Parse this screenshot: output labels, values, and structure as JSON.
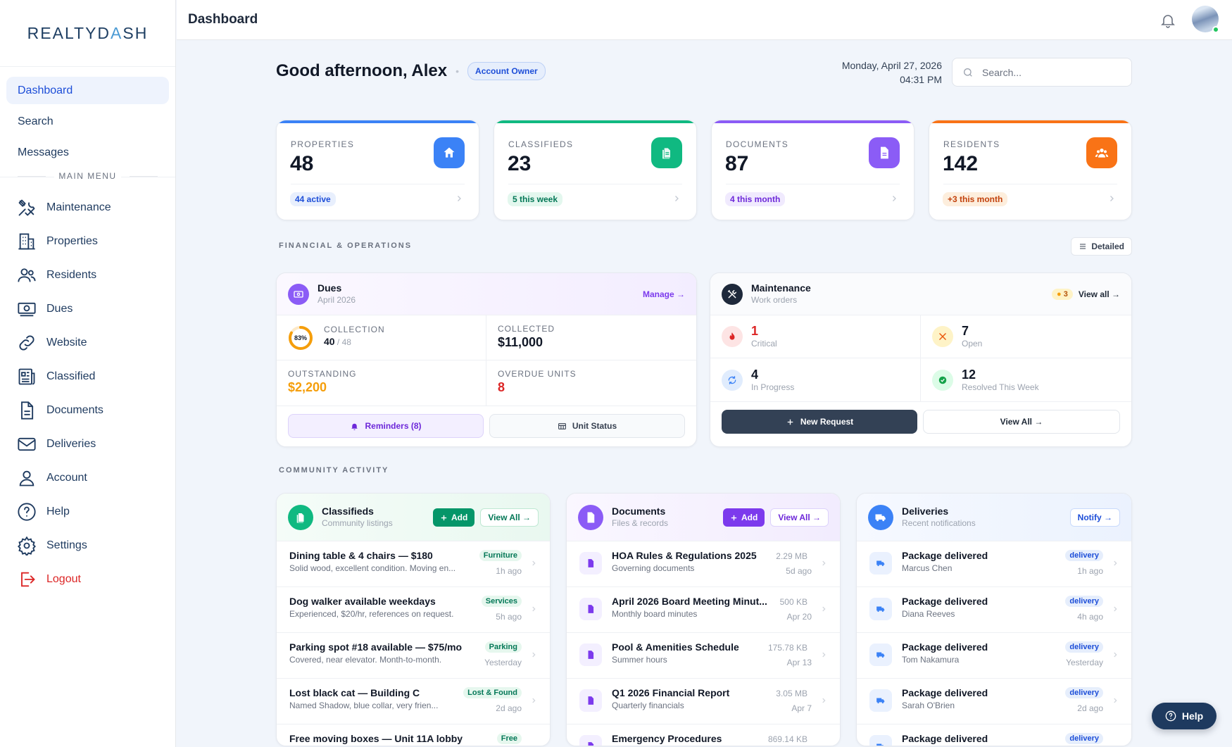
{
  "brand": {
    "logo_main": "REALTYD",
    "logo_accent": "A",
    "logo_tail": "SH"
  },
  "sidebar": {
    "top_items": [
      {
        "label": "Dashboard",
        "active": true
      },
      {
        "label": "Search"
      },
      {
        "label": "Messages"
      }
    ],
    "menu_title": "MAIN MENU",
    "items": [
      {
        "label": "Maintenance",
        "icon": "tools-icon"
      },
      {
        "label": "Properties",
        "icon": "building-icon"
      },
      {
        "label": "Residents",
        "icon": "users-icon"
      },
      {
        "label": "Dues",
        "icon": "money-icon"
      },
      {
        "label": "Website",
        "icon": "link-icon"
      },
      {
        "label": "Classified",
        "icon": "newspaper-icon"
      },
      {
        "label": "Documents",
        "icon": "document-icon"
      },
      {
        "label": "Deliveries",
        "icon": "mail-icon"
      },
      {
        "label": "Account",
        "icon": "person-icon"
      },
      {
        "label": "Help",
        "icon": "question-icon"
      },
      {
        "label": "Settings",
        "icon": "gear-icon"
      },
      {
        "label": "Logout",
        "icon": "logout-icon"
      }
    ]
  },
  "topbar": {
    "title": "Dashboard"
  },
  "header": {
    "greeting": "Good afternoon, Alex",
    "role_badge": "Account Owner",
    "date": "Monday, April 27, 2026",
    "time": "04:31 PM",
    "search_placeholder": "Search..."
  },
  "stats": [
    {
      "label": "PROPERTIES",
      "value": "48",
      "pill": "44 active",
      "color": "#3b82f6",
      "pill_bg": "#e8effd",
      "pill_fg": "#1d4ed8",
      "icon": "home-icon"
    },
    {
      "label": "CLASSIFIEDS",
      "value": "23",
      "pill": "5 this week",
      "color": "#10b981",
      "pill_bg": "#e3f7ee",
      "pill_fg": "#047857",
      "icon": "clipboard-icon"
    },
    {
      "label": "DOCUMENTS",
      "value": "87",
      "pill": "4 this month",
      "color": "#8b5cf6",
      "pill_bg": "#f0eafe",
      "pill_fg": "#6d28d9",
      "icon": "document-icon"
    },
    {
      "label": "RESIDENTS",
      "value": "142",
      "pill": "+3 this month",
      "color": "#f97316",
      "pill_bg": "#fdeedd",
      "pill_fg": "#c2410c",
      "icon": "users-icon"
    }
  ],
  "financial": {
    "section_label": "FINANCIAL & OPERATIONS",
    "detailed_button": "Detailed",
    "dues": {
      "title": "Dues",
      "subtitle": "April 2026",
      "manage": "Manage →",
      "collection_label": "COLLECTION",
      "collection_pct": "83%",
      "collection_fraction": 0.83,
      "collection_count": "40",
      "collection_total": " / 48",
      "collected_label": "COLLECTED",
      "collected_value": "$11,000",
      "outstanding_label": "OUTSTANDING",
      "outstanding_value": "$2,200",
      "overdue_label": "OVERDUE UNITS",
      "overdue_value": "8",
      "reminders_button": "Reminders (8)",
      "unit_status_button": "Unit Status"
    },
    "maintenance": {
      "title": "Maintenance",
      "subtitle": "Work orders",
      "badge": "3",
      "view_all": "View all →",
      "critical_value": "1",
      "critical_label": "Critical",
      "open_value": "7",
      "open_label": "Open",
      "progress_value": "4",
      "progress_label": "In Progress",
      "resolved_value": "12",
      "resolved_label": "Resolved This Week",
      "new_request_button": "New Request",
      "view_all_button": "View All →"
    }
  },
  "community": {
    "section_label": "COMMUNITY ACTIVITY",
    "classifieds": {
      "title": "Classifieds",
      "subtitle": "Community listings",
      "add": "Add",
      "view_all": "View All →",
      "rows": [
        {
          "title": "Dining table & 4 chairs — $180",
          "desc": "Solid wood, excellent condition. Moving en...",
          "tag": "Furniture",
          "time": "1h ago"
        },
        {
          "title": "Dog walker available weekdays",
          "desc": "Experienced, $20/hr, references on request.",
          "tag": "Services",
          "time": "5h ago"
        },
        {
          "title": "Parking spot #18 available — $75/mo",
          "desc": "Covered, near elevator. Month-to-month.",
          "tag": "Parking",
          "time": "Yesterday"
        },
        {
          "title": "Lost black cat — Building C",
          "desc": "Named Shadow, blue collar, very frien...",
          "tag": "Lost & Found",
          "time": "2d ago"
        },
        {
          "title": "Free moving boxes — Unit 11A lobby",
          "desc": "",
          "tag": "Free",
          "time": ""
        }
      ]
    },
    "documents": {
      "title": "Documents",
      "subtitle": "Files & records",
      "add": "Add",
      "view_all": "View All →",
      "rows": [
        {
          "title": "HOA Rules & Regulations 2025",
          "desc": "Governing documents",
          "size": "2.29 MB",
          "time": "5d ago"
        },
        {
          "title": "April 2026 Board Meeting Minut...",
          "desc": "Monthly board minutes",
          "size": "500 KB",
          "time": "Apr 20"
        },
        {
          "title": "Pool & Amenities Schedule",
          "desc": "Summer hours",
          "size": "175.78 KB",
          "time": "Apr 13"
        },
        {
          "title": "Q1 2026 Financial Report",
          "desc": "Quarterly financials",
          "size": "3.05 MB",
          "time": "Apr 7"
        },
        {
          "title": "Emergency Procedures",
          "desc": "",
          "size": "869.14 KB",
          "time": ""
        }
      ]
    },
    "deliveries": {
      "title": "Deliveries",
      "subtitle": "Recent notifications",
      "notify": "Notify →",
      "rows": [
        {
          "title": "Package delivered",
          "desc": "Marcus Chen",
          "tag": "delivery",
          "time": "1h ago"
        },
        {
          "title": "Package delivered",
          "desc": "Diana Reeves",
          "tag": "delivery",
          "time": "4h ago"
        },
        {
          "title": "Package delivered",
          "desc": "Tom Nakamura",
          "tag": "delivery",
          "time": "Yesterday"
        },
        {
          "title": "Package delivered",
          "desc": "Sarah O'Brien",
          "tag": "delivery",
          "time": "2d ago"
        },
        {
          "title": "Package delivered",
          "desc": "",
          "tag": "delivery",
          "time": ""
        }
      ]
    }
  },
  "help_button": "Help"
}
